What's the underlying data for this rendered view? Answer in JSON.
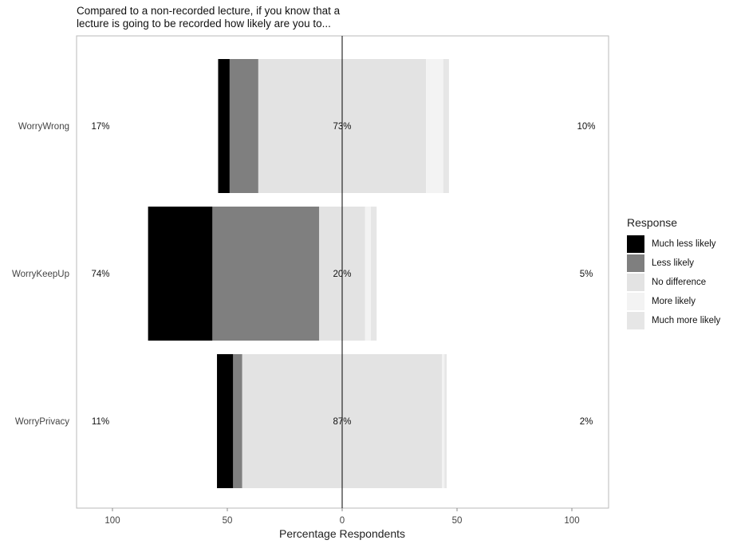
{
  "chart_data": {
    "type": "bar",
    "orientation": "horizontal",
    "stacked": "diverging",
    "title_lines": [
      "Compared to a non-recorded lecture, if you know that a",
      "lecture is going to be recorded how likely are you to..."
    ],
    "xlabel": "Percentage Respondents",
    "ylabel": "",
    "xlim": [
      -100,
      100
    ],
    "x_ticks": [
      {
        "value": -100,
        "label": "100"
      },
      {
        "value": -50,
        "label": "50"
      },
      {
        "value": 0,
        "label": "0"
      },
      {
        "value": 50,
        "label": "50"
      },
      {
        "value": 100,
        "label": "100"
      }
    ],
    "grid": false,
    "legend": {
      "title": "Response",
      "position": "right"
    },
    "categories": [
      "WorryWrong",
      "WorryKeepUp",
      "WorryPrivacy"
    ],
    "series": [
      {
        "name": "Much less likely",
        "color": "#000000",
        "values": [
          5,
          28,
          7
        ]
      },
      {
        "name": "Less likely",
        "color": "#7f7f7f",
        "values": [
          12.5,
          46.5,
          4
        ]
      },
      {
        "name": "No difference",
        "color": "#e3e3e3",
        "values": [
          73,
          20,
          87
        ]
      },
      {
        "name": "More likely",
        "color": "#f3f3f3",
        "values": [
          7.5,
          2.5,
          1
        ]
      },
      {
        "name": "Much more likely",
        "color": "#e6e6e6",
        "values": [
          2.5,
          2.5,
          1
        ]
      }
    ],
    "neutral_series": "No difference",
    "labels": [
      {
        "left": "17%",
        "center": "73%",
        "right": "10%"
      },
      {
        "left": "74%",
        "center": "20%",
        "right": "5%"
      },
      {
        "left": "11%",
        "center": "87%",
        "right": "2%"
      }
    ]
  }
}
